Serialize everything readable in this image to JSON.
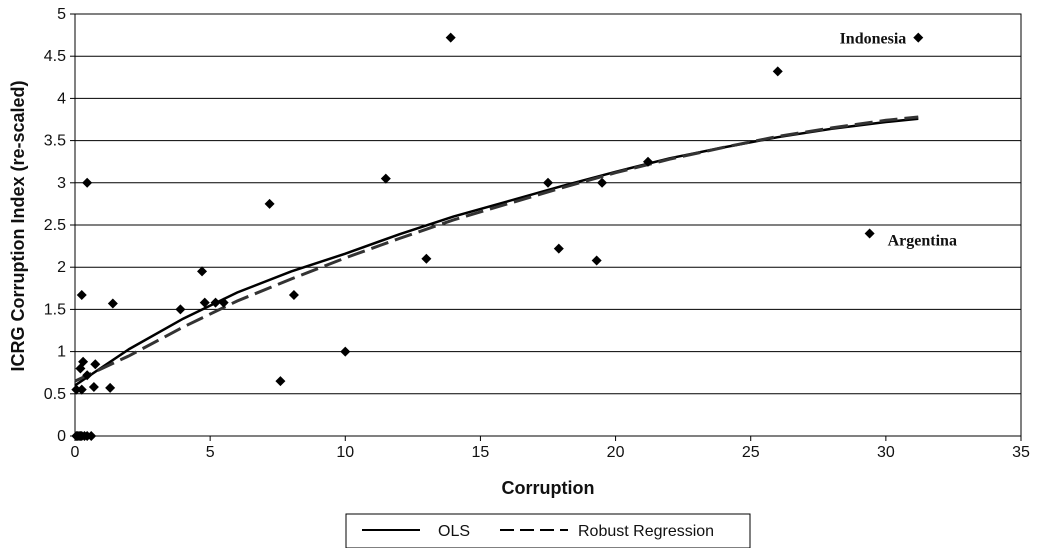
{
  "chart_data": {
    "type": "scatter",
    "title": "",
    "xlabel": "Corruption",
    "ylabel": "ICRG Corruption Index (re-scaled)",
    "xlim": [
      0,
      35
    ],
    "ylim": [
      0,
      5
    ],
    "x_ticks": [
      "0",
      "5",
      "10",
      "15",
      "20",
      "25",
      "30",
      "35"
    ],
    "y_ticks": [
      "0",
      "0.5",
      "1",
      "1.5",
      "2",
      "2.5",
      "3",
      "3.5",
      "4",
      "4.5",
      "5"
    ],
    "grid": "horizontal",
    "legend_position": "bottom",
    "marker": "diamond",
    "points": [
      {
        "x": 0.05,
        "y": 0
      },
      {
        "x": 0.1,
        "y": 0
      },
      {
        "x": 0.15,
        "y": 0
      },
      {
        "x": 0.2,
        "y": 0
      },
      {
        "x": 0.25,
        "y": 0
      },
      {
        "x": 0.35,
        "y": 0
      },
      {
        "x": 0.45,
        "y": 0
      },
      {
        "x": 0.6,
        "y": 0
      },
      {
        "x": 0.05,
        "y": 0.55
      },
      {
        "x": 0.25,
        "y": 0.55
      },
      {
        "x": 0.2,
        "y": 0.8
      },
      {
        "x": 0.3,
        "y": 0.88
      },
      {
        "x": 0.45,
        "y": 0.72
      },
      {
        "x": 0.7,
        "y": 0.58
      },
      {
        "x": 0.75,
        "y": 0.85
      },
      {
        "x": 1.3,
        "y": 0.57
      },
      {
        "x": 0.25,
        "y": 1.67
      },
      {
        "x": 0.45,
        "y": 3.0
      },
      {
        "x": 1.4,
        "y": 1.57
      },
      {
        "x": 3.9,
        "y": 1.5
      },
      {
        "x": 4.7,
        "y": 1.95
      },
      {
        "x": 4.8,
        "y": 1.58
      },
      {
        "x": 5.2,
        "y": 1.58
      },
      {
        "x": 5.5,
        "y": 1.58
      },
      {
        "x": 7.2,
        "y": 2.75
      },
      {
        "x": 7.6,
        "y": 0.65
      },
      {
        "x": 8.1,
        "y": 1.67
      },
      {
        "x": 10.0,
        "y": 1.0
      },
      {
        "x": 11.5,
        "y": 3.05
      },
      {
        "x": 13.0,
        "y": 2.1
      },
      {
        "x": 13.9,
        "y": 4.72
      },
      {
        "x": 17.5,
        "y": 3.0
      },
      {
        "x": 17.9,
        "y": 2.22
      },
      {
        "x": 19.3,
        "y": 2.08
      },
      {
        "x": 19.5,
        "y": 3.0
      },
      {
        "x": 21.2,
        "y": 3.25
      },
      {
        "x": 26.0,
        "y": 4.32
      },
      {
        "x": 29.4,
        "y": 2.4
      },
      {
        "x": 31.2,
        "y": 4.72
      }
    ],
    "series": [
      {
        "name": "OLS",
        "style": "solid",
        "x": [
          0,
          2,
          4,
          6,
          8,
          10,
          12,
          14,
          16,
          18,
          20,
          22,
          24,
          26,
          28,
          30,
          31.2
        ],
        "y": [
          0.6,
          1.03,
          1.39,
          1.7,
          1.95,
          2.16,
          2.39,
          2.6,
          2.78,
          2.96,
          3.13,
          3.29,
          3.42,
          3.54,
          3.64,
          3.72,
          3.76
        ]
      },
      {
        "name": "Robust Regression",
        "style": "dashed",
        "x": [
          0,
          2,
          4,
          6,
          8,
          10,
          12,
          14,
          16,
          18,
          20,
          22,
          24,
          26,
          28,
          30,
          31.2
        ],
        "y": [
          0.65,
          0.95,
          1.29,
          1.6,
          1.86,
          2.11,
          2.34,
          2.56,
          2.75,
          2.94,
          3.12,
          3.28,
          3.42,
          3.55,
          3.65,
          3.74,
          3.78
        ]
      }
    ],
    "annotations": [
      {
        "text": "Indonesia",
        "x": 31.2,
        "y": 4.72
      },
      {
        "text": "Argentina",
        "x": 29.4,
        "y": 2.4
      }
    ]
  }
}
